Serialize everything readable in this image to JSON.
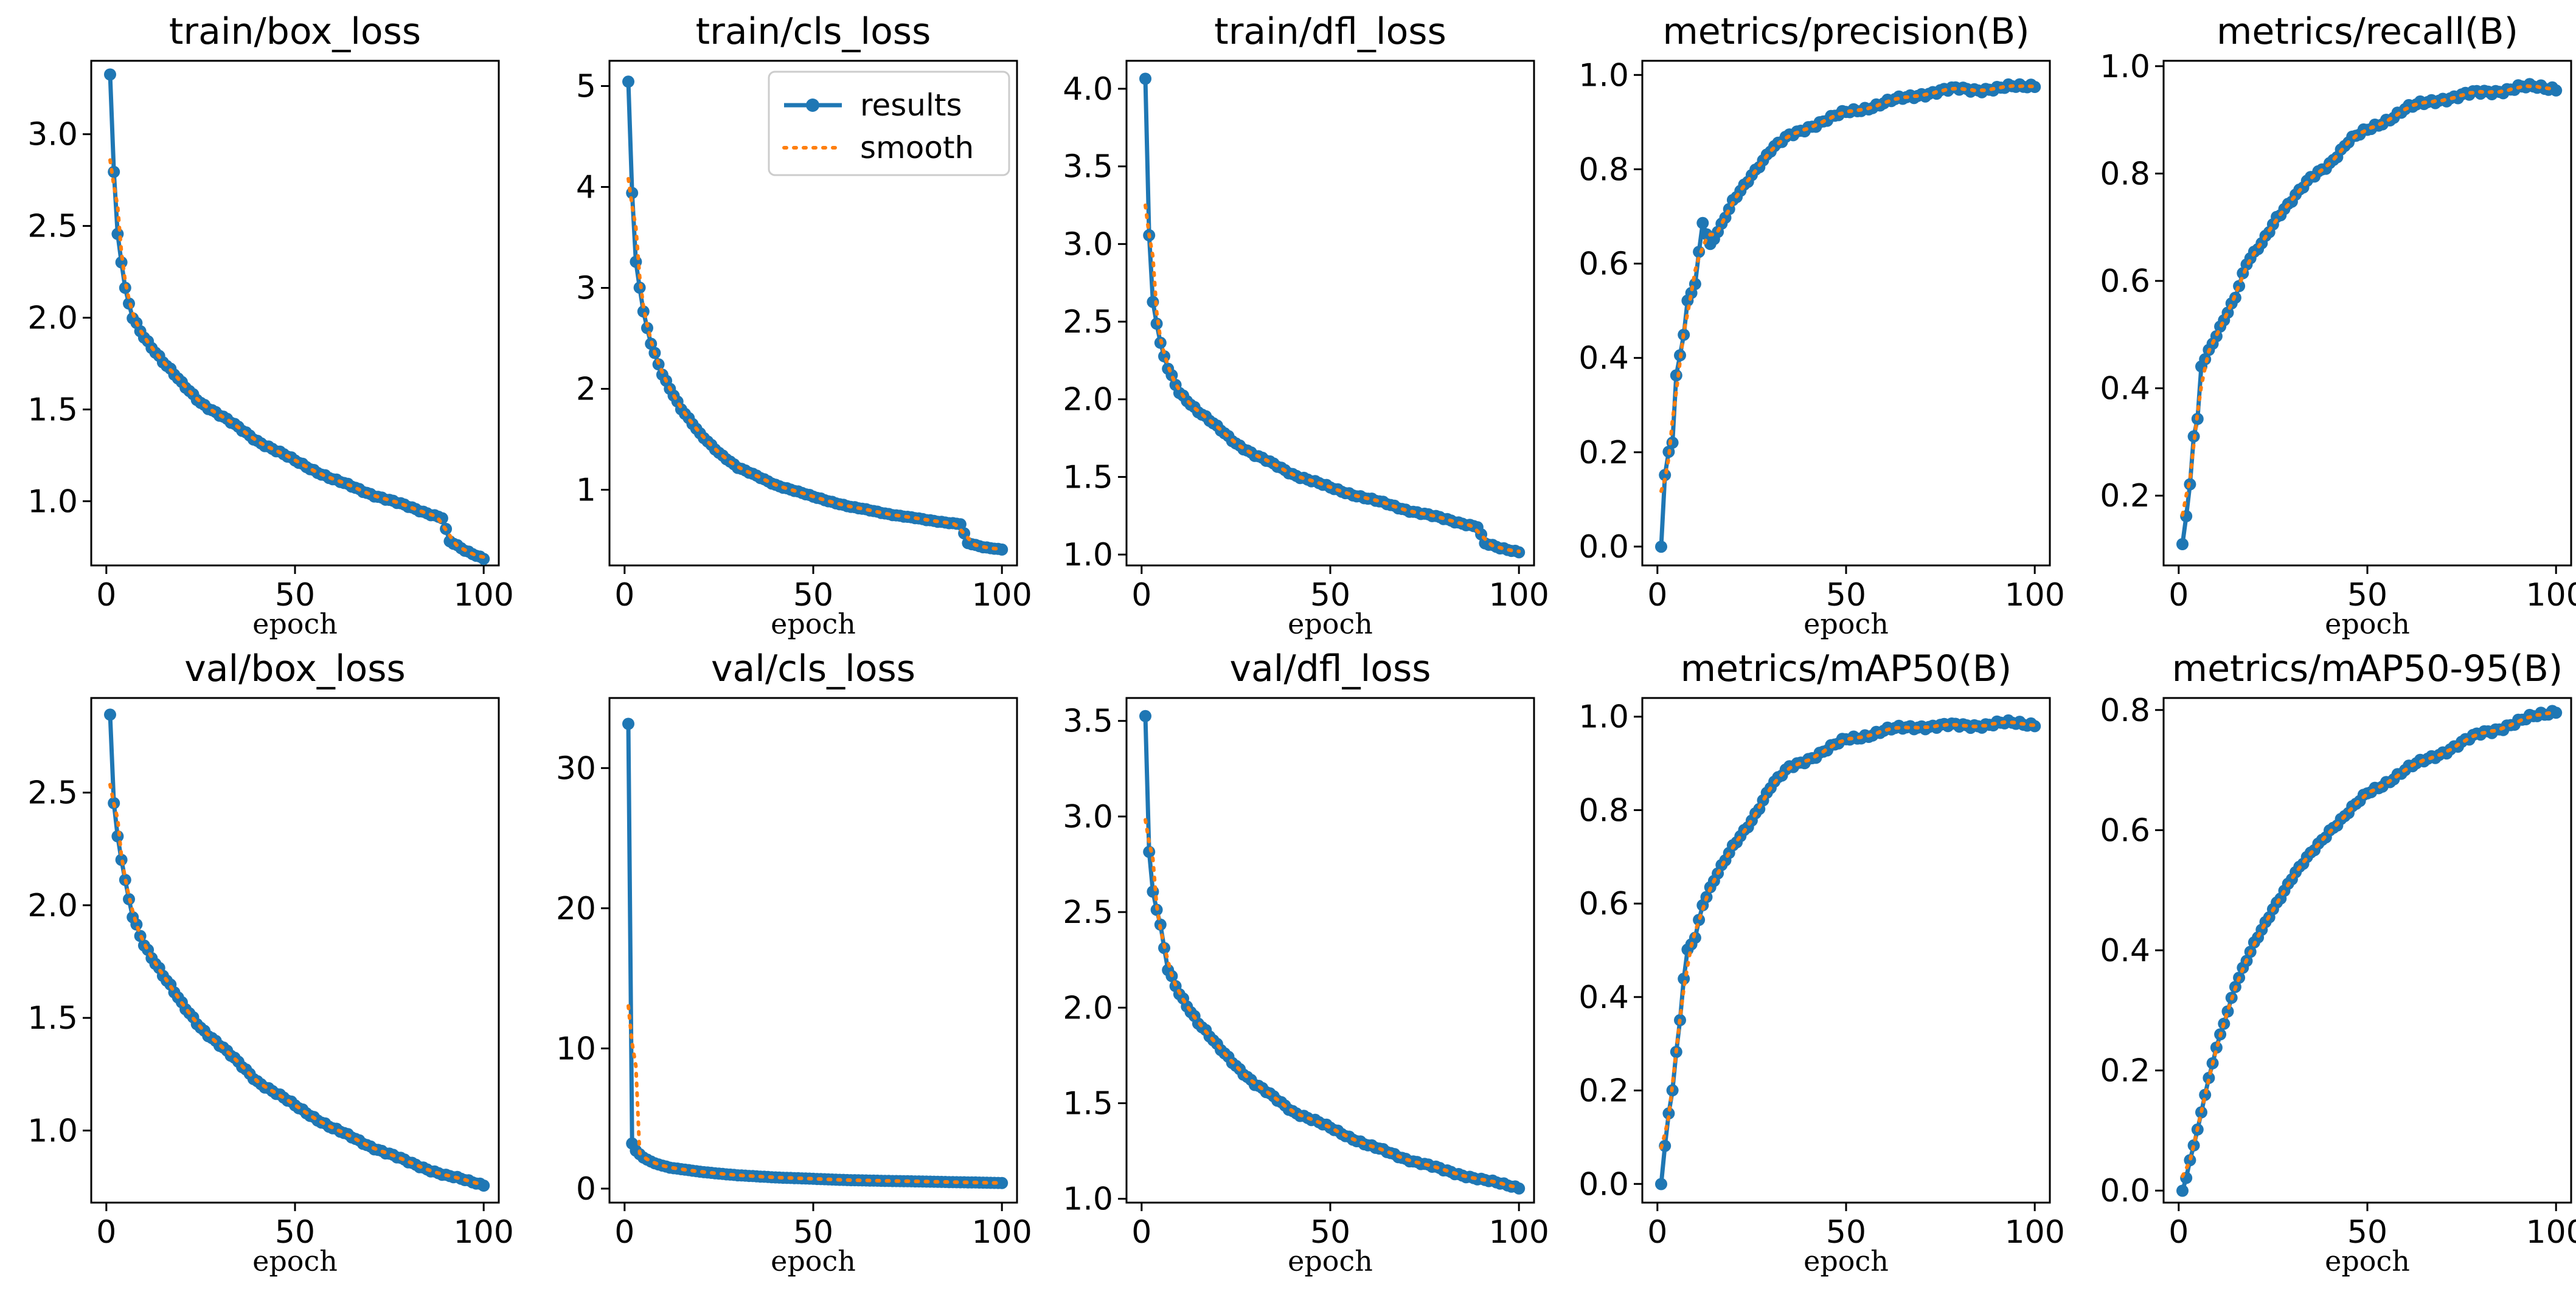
{
  "chart_data": [
    {
      "type": "line",
      "title": "train/box_loss",
      "xlabel": "epoch",
      "xlim": [
        1,
        100
      ],
      "ylim": [
        0.65,
        3.4
      ],
      "xticks": [
        0,
        50,
        100
      ],
      "yticks": [
        1.0,
        1.5,
        2.0,
        2.5,
        3.0
      ],
      "ytick_labels": [
        "1.0",
        "1.5",
        "2.0",
        "2.5",
        "3.0"
      ],
      "series": [
        {
          "name": "results",
          "anchors": [
            [
              1,
              3.33
            ],
            [
              2,
              2.78
            ],
            [
              3,
              2.45
            ],
            [
              5,
              2.15
            ],
            [
              7,
              2.0
            ],
            [
              10,
              1.9
            ],
            [
              15,
              1.76
            ],
            [
              20,
              1.64
            ],
            [
              25,
              1.54
            ],
            [
              30,
              1.47
            ],
            [
              40,
              1.33
            ],
            [
              50,
              1.22
            ],
            [
              60,
              1.12
            ],
            [
              70,
              1.04
            ],
            [
              80,
              0.97
            ],
            [
              89,
              0.91
            ],
            [
              91,
              0.78
            ],
            [
              95,
              0.73
            ],
            [
              100,
              0.69
            ]
          ]
        }
      ]
    },
    {
      "type": "line",
      "title": "train/cls_loss",
      "xlabel": "epoch",
      "xlim": [
        1,
        100
      ],
      "ylim": [
        0.25,
        5.25
      ],
      "xticks": [
        0,
        50,
        100
      ],
      "yticks": [
        1,
        2,
        3,
        4,
        5
      ],
      "ytick_labels": [
        "1",
        "2",
        "3",
        "4",
        "5"
      ],
      "legend": {
        "entries": [
          "results",
          "smooth"
        ],
        "position": "top-right"
      },
      "series": [
        {
          "name": "results",
          "anchors": [
            [
              1,
              5.05
            ],
            [
              2,
              3.92
            ],
            [
              3,
              3.25
            ],
            [
              5,
              2.75
            ],
            [
              7,
              2.45
            ],
            [
              10,
              2.15
            ],
            [
              15,
              1.8
            ],
            [
              20,
              1.55
            ],
            [
              25,
              1.37
            ],
            [
              30,
              1.22
            ],
            [
              40,
              1.05
            ],
            [
              50,
              0.93
            ],
            [
              60,
              0.83
            ],
            [
              70,
              0.76
            ],
            [
              80,
              0.7
            ],
            [
              89,
              0.66
            ],
            [
              91,
              0.47
            ],
            [
              95,
              0.43
            ],
            [
              100,
              0.41
            ]
          ]
        }
      ]
    },
    {
      "type": "line",
      "title": "train/dfl_loss",
      "xlabel": "epoch",
      "xlim": [
        1,
        100
      ],
      "ylim": [
        0.93,
        4.18
      ],
      "xticks": [
        0,
        50,
        100
      ],
      "yticks": [
        1.0,
        1.5,
        2.0,
        2.5,
        3.0,
        3.5,
        4.0
      ],
      "ytick_labels": [
        "1.0",
        "1.5",
        "2.0",
        "2.5",
        "3.0",
        "3.5",
        "4.0"
      ],
      "series": [
        {
          "name": "results",
          "anchors": [
            [
              1,
              4.07
            ],
            [
              2,
              3.04
            ],
            [
              3,
              2.62
            ],
            [
              5,
              2.35
            ],
            [
              7,
              2.2
            ],
            [
              10,
              2.05
            ],
            [
              15,
              1.92
            ],
            [
              20,
              1.82
            ],
            [
              25,
              1.72
            ],
            [
              30,
              1.64
            ],
            [
              40,
              1.52
            ],
            [
              50,
              1.43
            ],
            [
              60,
              1.36
            ],
            [
              70,
              1.29
            ],
            [
              80,
              1.23
            ],
            [
              89,
              1.18
            ],
            [
              91,
              1.07
            ],
            [
              95,
              1.04
            ],
            [
              100,
              1.02
            ]
          ]
        }
      ]
    },
    {
      "type": "line",
      "title": "metrics/precision(B)",
      "xlabel": "epoch",
      "xlim": [
        1,
        100
      ],
      "ylim": [
        -0.04,
        1.03
      ],
      "xticks": [
        0,
        50,
        100
      ],
      "yticks": [
        0.0,
        0.2,
        0.4,
        0.6,
        0.8,
        1.0
      ],
      "ytick_labels": [
        "0.0",
        "0.2",
        "0.4",
        "0.6",
        "0.8",
        "1.0"
      ],
      "series": [
        {
          "name": "results",
          "anchors": [
            [
              1,
              0.0
            ],
            [
              2,
              0.15
            ],
            [
              3,
              0.2
            ],
            [
              4,
              0.22
            ],
            [
              5,
              0.36
            ],
            [
              7,
              0.45
            ],
            [
              8,
              0.52
            ],
            [
              10,
              0.56
            ],
            [
              12,
              0.69
            ],
            [
              14,
              0.64
            ],
            [
              17,
              0.68
            ],
            [
              20,
              0.73
            ],
            [
              25,
              0.79
            ],
            [
              30,
              0.84
            ],
            [
              35,
              0.87
            ],
            [
              40,
              0.89
            ],
            [
              50,
              0.92
            ],
            [
              60,
              0.94
            ],
            [
              70,
              0.96
            ],
            [
              80,
              0.97
            ],
            [
              90,
              0.97
            ],
            [
              100,
              0.98
            ]
          ]
        }
      ]
    },
    {
      "type": "line",
      "title": "metrics/recall(B)",
      "xlabel": "epoch",
      "xlim": [
        1,
        100
      ],
      "ylim": [
        0.07,
        1.01
      ],
      "xticks": [
        0,
        50,
        100
      ],
      "yticks": [
        0.2,
        0.4,
        0.6,
        0.8,
        1.0
      ],
      "ytick_labels": [
        "0.2",
        "0.4",
        "0.6",
        "0.8",
        "1.0"
      ],
      "series": [
        {
          "name": "results",
          "anchors": [
            [
              1,
              0.11
            ],
            [
              2,
              0.16
            ],
            [
              3,
              0.22
            ],
            [
              4,
              0.31
            ],
            [
              5,
              0.34
            ],
            [
              6,
              0.44
            ],
            [
              8,
              0.47
            ],
            [
              10,
              0.5
            ],
            [
              12,
              0.53
            ],
            [
              15,
              0.57
            ],
            [
              18,
              0.63
            ],
            [
              22,
              0.67
            ],
            [
              26,
              0.72
            ],
            [
              30,
              0.75
            ],
            [
              35,
              0.79
            ],
            [
              40,
              0.82
            ],
            [
              45,
              0.86
            ],
            [
              50,
              0.88
            ],
            [
              60,
              0.92
            ],
            [
              70,
              0.94
            ],
            [
              80,
              0.95
            ],
            [
              90,
              0.96
            ],
            [
              100,
              0.96
            ]
          ]
        }
      ]
    },
    {
      "type": "line",
      "title": "val/box_loss",
      "xlabel": "epoch",
      "xlim": [
        1,
        100
      ],
      "ylim": [
        0.68,
        2.92
      ],
      "xticks": [
        0,
        50,
        100
      ],
      "yticks": [
        1.0,
        1.5,
        2.0,
        2.5
      ],
      "ytick_labels": [
        "1.0",
        "1.5",
        "2.0",
        "2.5"
      ],
      "series": [
        {
          "name": "results",
          "anchors": [
            [
              1,
              2.85
            ],
            [
              2,
              2.44
            ],
            [
              3,
              2.3
            ],
            [
              4,
              2.2
            ],
            [
              5,
              2.1
            ],
            [
              7,
              1.95
            ],
            [
              10,
              1.83
            ],
            [
              15,
              1.69
            ],
            [
              20,
              1.56
            ],
            [
              25,
              1.46
            ],
            [
              30,
              1.38
            ],
            [
              40,
              1.22
            ],
            [
              50,
              1.11
            ],
            [
              60,
              1.01
            ],
            [
              70,
              0.93
            ],
            [
              80,
              0.86
            ],
            [
              90,
              0.8
            ],
            [
              100,
              0.76
            ]
          ]
        }
      ]
    },
    {
      "type": "line",
      "title": "val/cls_loss",
      "xlabel": "epoch",
      "xlim": [
        1,
        100
      ],
      "ylim": [
        -1,
        35
      ],
      "xticks": [
        0,
        50,
        100
      ],
      "yticks": [
        0,
        10,
        20,
        30
      ],
      "ytick_labels": [
        "0",
        "10",
        "20",
        "30"
      ],
      "series": [
        {
          "name": "results",
          "anchors": [
            [
              1,
              33.2
            ],
            [
              2,
              3.2
            ],
            [
              3,
              2.7
            ],
            [
              5,
              2.2
            ],
            [
              8,
              1.8
            ],
            [
              12,
              1.5
            ],
            [
              20,
              1.2
            ],
            [
              30,
              0.95
            ],
            [
              40,
              0.8
            ],
            [
              50,
              0.7
            ],
            [
              60,
              0.6
            ],
            [
              70,
              0.55
            ],
            [
              80,
              0.5
            ],
            [
              90,
              0.45
            ],
            [
              100,
              0.4
            ]
          ]
        }
      ]
    },
    {
      "type": "line",
      "title": "val/dfl_loss",
      "xlabel": "epoch",
      "xlim": [
        1,
        100
      ],
      "ylim": [
        0.98,
        3.62
      ],
      "xticks": [
        0,
        50,
        100
      ],
      "yticks": [
        1.0,
        1.5,
        2.0,
        2.5,
        3.0,
        3.5
      ],
      "ytick_labels": [
        "1.0",
        "1.5",
        "2.0",
        "2.5",
        "3.0",
        "3.5"
      ],
      "series": [
        {
          "name": "results",
          "anchors": [
            [
              1,
              3.53
            ],
            [
              2,
              2.8
            ],
            [
              3,
              2.6
            ],
            [
              5,
              2.42
            ],
            [
              7,
              2.2
            ],
            [
              10,
              2.08
            ],
            [
              15,
              1.92
            ],
            [
              20,
              1.8
            ],
            [
              25,
              1.7
            ],
            [
              30,
              1.6
            ],
            [
              40,
              1.46
            ],
            [
              50,
              1.37
            ],
            [
              60,
              1.28
            ],
            [
              70,
              1.21
            ],
            [
              80,
              1.15
            ],
            [
              90,
              1.1
            ],
            [
              100,
              1.06
            ]
          ]
        }
      ]
    },
    {
      "type": "line",
      "title": "metrics/mAP50(B)",
      "xlabel": "epoch",
      "xlim": [
        1,
        100
      ],
      "ylim": [
        -0.04,
        1.04
      ],
      "xticks": [
        0,
        50,
        100
      ],
      "yticks": [
        0.0,
        0.2,
        0.4,
        0.6,
        0.8,
        1.0
      ],
      "ytick_labels": [
        "0.0",
        "0.2",
        "0.4",
        "0.6",
        "0.8",
        "1.0"
      ],
      "series": [
        {
          "name": "results",
          "anchors": [
            [
              1,
              0.0
            ],
            [
              2,
              0.08
            ],
            [
              3,
              0.15
            ],
            [
              4,
              0.2
            ],
            [
              5,
              0.28
            ],
            [
              6,
              0.35
            ],
            [
              7,
              0.44
            ],
            [
              8,
              0.5
            ],
            [
              10,
              0.53
            ],
            [
              12,
              0.6
            ],
            [
              15,
              0.65
            ],
            [
              20,
              0.72
            ],
            [
              25,
              0.78
            ],
            [
              30,
              0.85
            ],
            [
              35,
              0.89
            ],
            [
              40,
              0.91
            ],
            [
              50,
              0.95
            ],
            [
              60,
              0.97
            ],
            [
              70,
              0.98
            ],
            [
              80,
              0.98
            ],
            [
              90,
              0.985
            ],
            [
              100,
              0.985
            ]
          ]
        }
      ]
    },
    {
      "type": "line",
      "title": "metrics/mAP50-95(B)",
      "xlabel": "epoch",
      "xlim": [
        1,
        100
      ],
      "ylim": [
        -0.02,
        0.82
      ],
      "xticks": [
        0,
        50,
        100
      ],
      "yticks": [
        0.0,
        0.2,
        0.4,
        0.6,
        0.8
      ],
      "ytick_labels": [
        "0.0",
        "0.2",
        "0.4",
        "0.6",
        "0.8"
      ],
      "series": [
        {
          "name": "results",
          "anchors": [
            [
              1,
              0.0
            ],
            [
              2,
              0.02
            ],
            [
              3,
              0.05
            ],
            [
              5,
              0.1
            ],
            [
              7,
              0.16
            ],
            [
              10,
              0.24
            ],
            [
              15,
              0.34
            ],
            [
              20,
              0.41
            ],
            [
              25,
              0.47
            ],
            [
              30,
              0.52
            ],
            [
              35,
              0.56
            ],
            [
              40,
              0.6
            ],
            [
              50,
              0.66
            ],
            [
              60,
              0.7
            ],
            [
              70,
              0.73
            ],
            [
              80,
              0.76
            ],
            [
              90,
              0.78
            ],
            [
              100,
              0.8
            ]
          ]
        }
      ]
    }
  ]
}
